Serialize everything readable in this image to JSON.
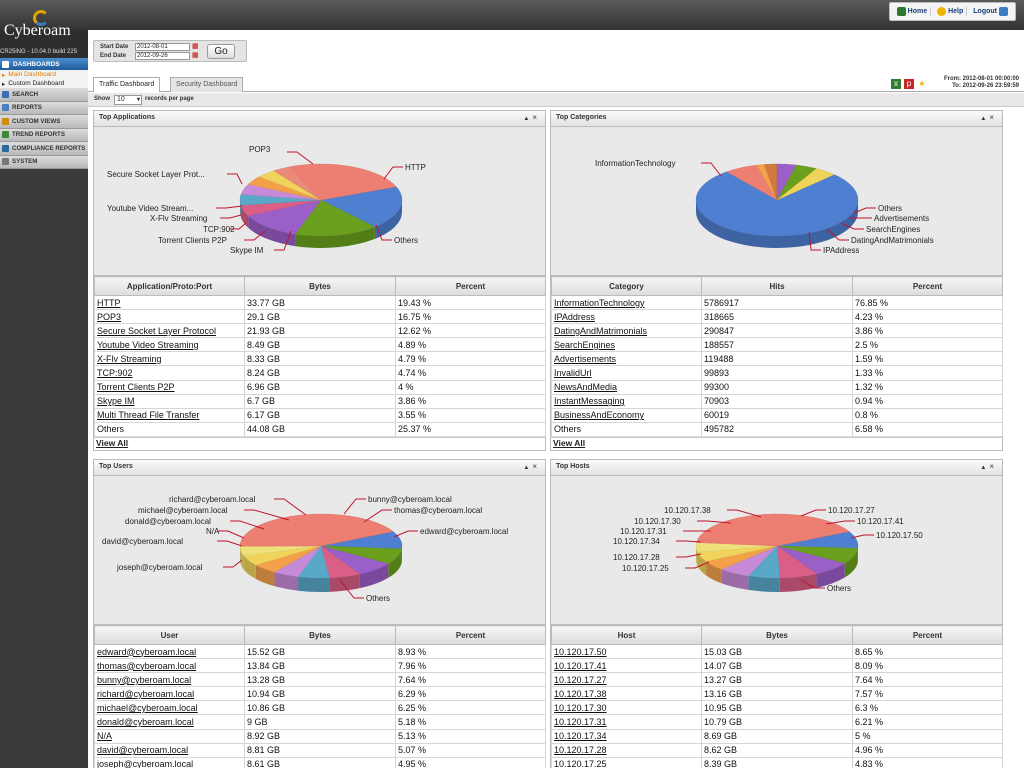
{
  "app": {
    "logo_text": "Cyberoam",
    "version": "CR25iNG - 10.04.0 build 225"
  },
  "topnav": {
    "home": "Home",
    "help": "Help",
    "logout": "Logout"
  },
  "sidebar": {
    "dashboards": "DASHBOARDS",
    "main_dashboard": "Main Dashboard",
    "custom_dashboard": "Custom Dashboard",
    "items": [
      {
        "label": "SEARCH",
        "icon": "search-icon",
        "color": "#3a6fb0"
      },
      {
        "label": "REPORTS",
        "icon": "reports-icon",
        "color": "#4a7fc0"
      },
      {
        "label": "CUSTOM VIEWS",
        "icon": "custom-views-icon",
        "color": "#d08a10"
      },
      {
        "label": "TREND REPORTS",
        "icon": "trend-icon",
        "color": "#3a8a3a"
      },
      {
        "label": "COMPLIANCE REPORTS",
        "icon": "compliance-icon",
        "color": "#2a6aa0"
      },
      {
        "label": "SYSTEM",
        "icon": "system-icon",
        "color": "#777777"
      }
    ]
  },
  "dates": {
    "start_label": "Start Date",
    "end_label": "End Date",
    "start_value": "2012-08-01",
    "end_value": "2012-09-26",
    "go": "Go"
  },
  "tabs": {
    "traffic": "Traffic Dashboard",
    "security": "Security Dashboard"
  },
  "range": {
    "from": "From: 2012-08-01 00:00:00",
    "to": "To: 2012-09-26 23:59:59"
  },
  "show": {
    "label": "Show",
    "value": "10",
    "suffix": "records per page"
  },
  "widgets": {
    "apps": {
      "title": "Top Applications",
      "headers": [
        "Application/Proto:Port",
        "Bytes",
        "Percent"
      ],
      "rows": [
        [
          "HTTP",
          "33.77 GB",
          "19.43 %"
        ],
        [
          "POP3",
          "29.1 GB",
          "16.75 %"
        ],
        [
          "Secure Socket Layer Protocol",
          "21.93 GB",
          "12.62 %"
        ],
        [
          "Youtube Video Streaming",
          "8.49 GB",
          "4.89 %"
        ],
        [
          "X-Flv Streaming",
          "8.33 GB",
          "4.79 %"
        ],
        [
          "TCP:902",
          "8.24 GB",
          "4.74 %"
        ],
        [
          "Torrent Clients P2P",
          "6.96 GB",
          "4 %"
        ],
        [
          "Skype IM",
          "6.7 GB",
          "3.86 %"
        ],
        [
          "Multi Thread File Transfer",
          "6.17 GB",
          "3.55 %"
        ],
        [
          "Others",
          "44.08 GB",
          "25.37 %"
        ]
      ],
      "view_all": "View All",
      "pie_labels": [
        "POP3",
        "HTTP",
        "Secure Socket Layer Prot...",
        "Youtube Video Stream...",
        "X-Flv Streaming",
        "TCP:902",
        "Torrent Clients P2P",
        "Skype IM",
        "Others"
      ]
    },
    "cats": {
      "title": "Top Categories",
      "headers": [
        "Category",
        "Hits",
        "Percent"
      ],
      "rows": [
        [
          "InformationTechnology",
          "5786917",
          "76.85 %"
        ],
        [
          "IPAddress",
          "318665",
          "4.23 %"
        ],
        [
          "DatingAndMatrimonials",
          "290847",
          "3.86 %"
        ],
        [
          "SearchEngines",
          "188557",
          "2.5 %"
        ],
        [
          "Advertisements",
          "119488",
          "1.59 %"
        ],
        [
          "InvalidUrl",
          "99893",
          "1.33 %"
        ],
        [
          "NewsAndMedia",
          "99300",
          "1.32 %"
        ],
        [
          "InstantMessaging",
          "70903",
          "0.94 %"
        ],
        [
          "BusinessAndEconomy",
          "60019",
          "0.8 %"
        ],
        [
          "Others",
          "495782",
          "6.58 %"
        ]
      ],
      "view_all": "View All",
      "pie_labels": [
        "InformationTechnology",
        "Others",
        "Advertisements",
        "SearchEngines",
        "DatingAndMatrimonials",
        "IPAddress"
      ]
    },
    "users": {
      "title": "Top Users",
      "headers": [
        "User",
        "Bytes",
        "Percent"
      ],
      "rows": [
        [
          "edward@cyberoam.local",
          "15.52 GB",
          "8.93 %"
        ],
        [
          "thomas@cyberoam.local",
          "13.84 GB",
          "7.96 %"
        ],
        [
          "bunny@cyberoam.local",
          "13.28 GB",
          "7.64 %"
        ],
        [
          "richard@cyberoam.local",
          "10.94 GB",
          "6.29 %"
        ],
        [
          "michael@cyberoam.local",
          "10.86 GB",
          "6.25 %"
        ],
        [
          "donald@cyberoam.local",
          "9 GB",
          "5.18 %"
        ],
        [
          "N/A",
          "8.92 GB",
          "5.13 %"
        ],
        [
          "david@cyberoam.local",
          "8.81 GB",
          "5.07 %"
        ],
        [
          "joseph@cyberoam.local",
          "8.61 GB",
          "4.95 %"
        ]
      ],
      "pie_labels": [
        "richard@cyberoam.local",
        "bunny@cyberoam.local",
        "michael@cyberoam.local",
        "thomas@cyberoam.local",
        "donald@cyberoam.local",
        "N/A",
        "edward@cyberoam.local",
        "david@cyberoam.local",
        "joseph@cyberoam.local",
        "Others"
      ]
    },
    "hosts": {
      "title": "Top Hosts",
      "headers": [
        "Host",
        "Bytes",
        "Percent"
      ],
      "rows": [
        [
          "10.120.17.50",
          "15.03 GB",
          "8.65 %"
        ],
        [
          "10.120.17.41",
          "14.07 GB",
          "8.09 %"
        ],
        [
          "10.120.17.27",
          "13.27 GB",
          "7.64 %"
        ],
        [
          "10.120.17.38",
          "13.16 GB",
          "7.57 %"
        ],
        [
          "10.120.17.30",
          "10.95 GB",
          "6.3 %"
        ],
        [
          "10.120.17.31",
          "10.79 GB",
          "6.21 %"
        ],
        [
          "10.120.17.34",
          "8.69 GB",
          "5 %"
        ],
        [
          "10.120.17.28",
          "8.62 GB",
          "4.96 %"
        ],
        [
          "10.120.17.25",
          "8.39 GB",
          "4.83 %"
        ]
      ],
      "pie_labels": [
        "10.120.17.38",
        "10.120.17.27",
        "10.120.17.30",
        "10.120.17.41",
        "10.120.17.31",
        "10.120.17.50",
        "10.120.17.34",
        "10.120.17.28",
        "10.120.17.25",
        "Others"
      ]
    }
  },
  "colors": {
    "blue": "#4f7fd0",
    "green": "#6aa01e",
    "purple": "#9b5fc8",
    "salmon": "#ec7e72",
    "orange": "#f3a04a",
    "yellow": "#efd35a",
    "teal": "#5aa8c8",
    "pink": "#d95f86"
  }
}
